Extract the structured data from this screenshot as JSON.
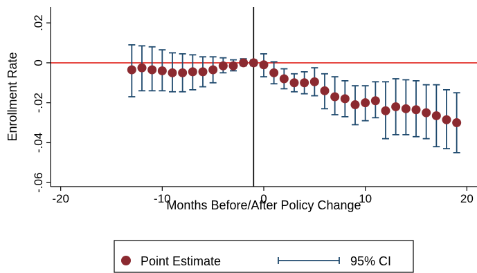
{
  "chart_data": {
    "type": "scatter",
    "xlabel": "Months Before/After Policy Change",
    "ylabel": "Enrollment Rate",
    "xlim": [
      -21,
      21
    ],
    "ylim": [
      -0.062,
      0.028
    ],
    "xticks": [
      -20,
      -10,
      0,
      10,
      20
    ],
    "xtick_labels": [
      "-20",
      "-10",
      "0",
      "10",
      "20"
    ],
    "yticks": [
      0.02,
      0,
      -0.02,
      -0.04,
      -0.06
    ],
    "ytick_labels": [
      ".02",
      "0",
      "-.02",
      "-.04",
      "-.06"
    ],
    "reference_lines": {
      "horizontal_y": 0,
      "vertical_x": -1
    },
    "colors": {
      "points": "#8b2a30",
      "ci": "#1f4a6e",
      "hline": "#e0201a",
      "vline": "#000000"
    },
    "legend_position": "bottom",
    "series": [
      {
        "name": "Point Estimate",
        "x": [
          -13,
          -12,
          -11,
          -10,
          -9,
          -8,
          -7,
          -6,
          -5,
          -4,
          -3,
          -2,
          -1,
          0,
          1,
          2,
          3,
          4,
          5,
          6,
          7,
          8,
          9,
          10,
          11,
          12,
          13,
          14,
          15,
          16,
          17,
          18,
          19
        ],
        "y": [
          -0.0035,
          -0.0025,
          -0.0035,
          -0.004,
          -0.005,
          -0.005,
          -0.0045,
          -0.0045,
          -0.0035,
          -0.0015,
          -0.0015,
          0.0,
          0.0,
          -0.001,
          -0.005,
          -0.008,
          -0.01,
          -0.01,
          -0.0095,
          -0.014,
          -0.017,
          -0.018,
          -0.021,
          -0.02,
          -0.019,
          -0.024,
          -0.022,
          -0.023,
          -0.0235,
          -0.025,
          -0.0265,
          -0.0285,
          -0.03
        ]
      },
      {
        "name": "95% CI",
        "x": [
          -13,
          -12,
          -11,
          -10,
          -9,
          -8,
          -7,
          -6,
          -5,
          -4,
          -3,
          -2,
          -1,
          0,
          1,
          2,
          3,
          4,
          5,
          6,
          7,
          8,
          9,
          10,
          11,
          12,
          13,
          14,
          15,
          16,
          17,
          18,
          19
        ],
        "lower": [
          -0.017,
          -0.014,
          -0.014,
          -0.014,
          -0.0145,
          -0.0145,
          -0.0135,
          -0.012,
          -0.01,
          -0.005,
          -0.004,
          -0.0015,
          -0.0015,
          -0.007,
          -0.0105,
          -0.013,
          -0.0145,
          -0.0155,
          -0.0165,
          -0.023,
          -0.026,
          -0.027,
          -0.031,
          -0.029,
          -0.0275,
          -0.038,
          -0.036,
          -0.036,
          -0.037,
          -0.038,
          -0.042,
          -0.043,
          -0.045
        ],
        "upper": [
          0.009,
          0.0085,
          0.008,
          0.0065,
          0.005,
          0.0045,
          0.004,
          0.003,
          0.003,
          0.0025,
          0.0015,
          0.002,
          0.0015,
          0.0045,
          0.0005,
          -0.003,
          -0.0055,
          -0.0045,
          -0.0025,
          -0.0055,
          -0.007,
          -0.009,
          -0.0115,
          -0.0115,
          -0.0095,
          -0.0095,
          -0.008,
          -0.0085,
          -0.009,
          -0.011,
          -0.011,
          -0.0135,
          -0.015
        ]
      }
    ]
  }
}
